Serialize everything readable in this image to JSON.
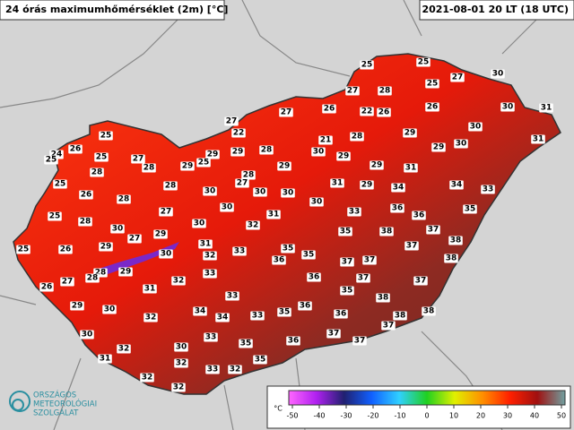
{
  "title": "24 órás maximumhőmérséklet (2m) [°C]",
  "timestamp": "2021-08-01 20 LT (18 UTC)",
  "stations": [
    25,
    25,
    30,
    25,
    27,
    27,
    28,
    30,
    31,
    26,
    22,
    26,
    26,
    27,
    27,
    22,
    30,
    29,
    28,
    25,
    26,
    31,
    30,
    21,
    29,
    28,
    29,
    29,
    25,
    27,
    25,
    30,
    29,
    28,
    29,
    28,
    24,
    25,
    29,
    29,
    31,
    25,
    28,
    28,
    27,
    31,
    29,
    34,
    34,
    33,
    30,
    30,
    30,
    26,
    28,
    30,
    30,
    27,
    31,
    33,
    36,
    36,
    35,
    25,
    28,
    30,
    32,
    30,
    35,
    38,
    37,
    29,
    27,
    31,
    38,
    29,
    26,
    25,
    35,
    37,
    30,
    33,
    35,
    36,
    37,
    37,
    38,
    28,
    29,
    32,
    33,
    28,
    26,
    27,
    31,
    32,
    36,
    37,
    37,
    35,
    33,
    38,
    29,
    30,
    34,
    36,
    35,
    33,
    34,
    32,
    36,
    38,
    38,
    37,
    30,
    33,
    35,
    36,
    37,
    37,
    30,
    32,
    31,
    32,
    35,
    32,
    33,
    32,
    32
  ],
  "colorbar": {
    "unit": "°C",
    "ticks": [
      -50,
      -40,
      -30,
      -20,
      -10,
      0,
      10,
      20,
      30,
      40,
      50
    ]
  },
  "logo": {
    "lines": [
      "ORSZÁGOS",
      "METEOROLÓGIAI",
      "SZOLGÁLAT"
    ]
  }
}
